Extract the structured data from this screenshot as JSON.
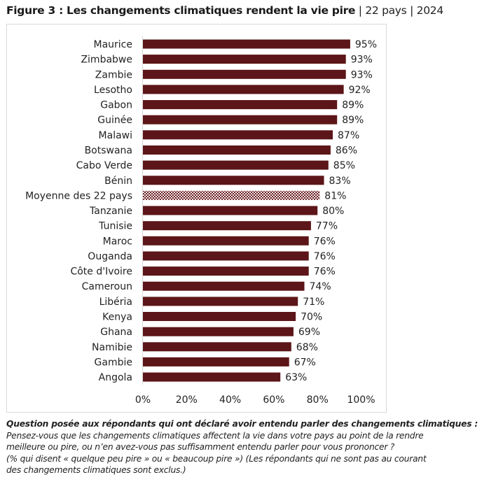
{
  "header": {
    "title_bold": "Figure 3 : Les changements climatiques rendent la vie pire",
    "title_rest": " | 22 pays | 2024"
  },
  "colors": {
    "bar": "#5c1518",
    "average_pattern_dark": "#6b2328",
    "average_pattern_light": "#f2e6e6",
    "axis": "#d9d9d9"
  },
  "chart_data": {
    "type": "bar",
    "orientation": "horizontal",
    "title": "Figure 3 : Les changements climatiques rendent la vie pire | 22 pays | 2024",
    "categories": [
      "Maurice",
      "Zimbabwe",
      "Zambie",
      "Lesotho",
      "Gabon",
      "Guinée",
      "Malawi",
      "Botswana",
      "Cabo Verde",
      "Bénin",
      "Moyenne des 22 pays",
      "Tanzanie",
      "Tunisie",
      "Maroc",
      "Ouganda",
      "Côte d'Ivoire",
      "Cameroun",
      "Libéria",
      "Kenya",
      "Ghana",
      "Namibie",
      "Gambie",
      "Angola"
    ],
    "values": [
      95,
      93,
      93,
      92,
      89,
      89,
      87,
      86,
      85,
      83,
      81,
      80,
      77,
      76,
      76,
      76,
      74,
      71,
      70,
      69,
      68,
      67,
      63
    ],
    "value_labels": [
      "95%",
      "93%",
      "93%",
      "92%",
      "89%",
      "89%",
      "87%",
      "86%",
      "85%",
      "83%",
      "81%",
      "80%",
      "77%",
      "76%",
      "76%",
      "76%",
      "74%",
      "71%",
      "70%",
      "69%",
      "68%",
      "67%",
      "63%"
    ],
    "highlight_category": "Moyenne des 22 pays",
    "xlim": [
      0,
      100
    ],
    "xticks": [
      "0%",
      "20%",
      "40%",
      "60%",
      "80%",
      "100%"
    ],
    "grid": false,
    "xlabel": "",
    "ylabel": ""
  },
  "note": {
    "question": "Question posée aux répondants qui ont déclaré avoir entendu parler des changements climatiques :",
    "line1": "Pensez-vous que les changements climatiques affectent la vie dans votre pays au point de la rendre",
    "line2": "meilleure ou pire, ou n’en avez-vous pas suffisamment entendu parler pour vous prononcer ?",
    "line3": "(% qui disent « quelque peu pire » ou « beaucoup pire ») (Les répondants qui ne sont pas au courant",
    "line4": "des changements climatiques sont exclus.)"
  }
}
